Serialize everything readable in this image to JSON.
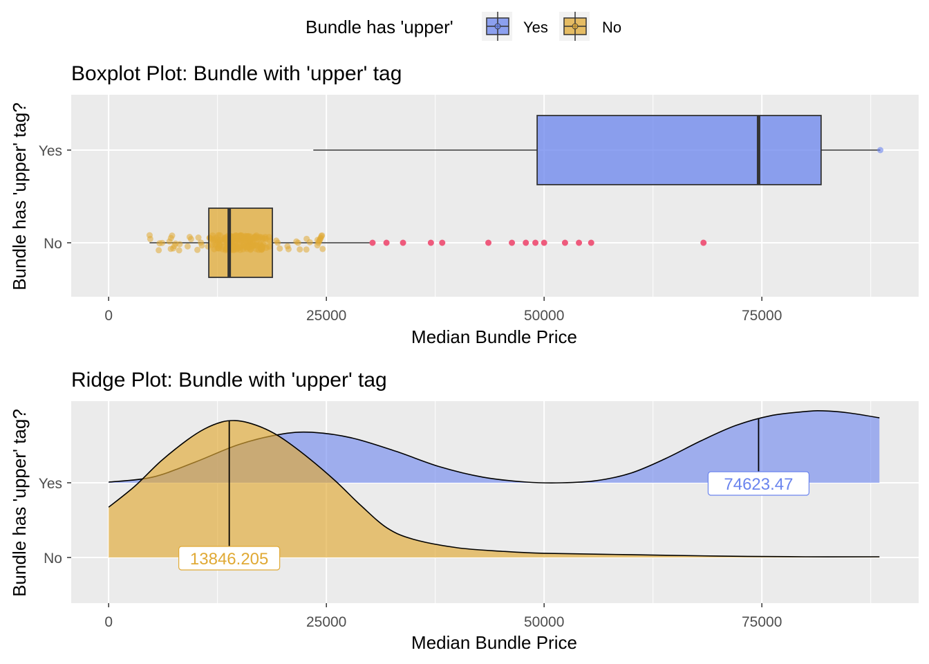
{
  "legend": {
    "title": "Bundle has 'upper'",
    "items": [
      {
        "label": "Yes",
        "color": "#6a84ee"
      },
      {
        "label": "No",
        "color": "#e0a934"
      }
    ]
  },
  "colors": {
    "panel_bg": "#ebebeb",
    "grid": "#ffffff",
    "yes_fill": "#6a84ee",
    "no_fill": "#e0a934",
    "outlier": "#ee5a7c",
    "axis_text": "#4d4d4d"
  },
  "chart_data": [
    {
      "type": "boxplot",
      "title": "Boxplot Plot: Bundle with 'upper' tag",
      "xlabel": "Median Bundle Price",
      "ylabel": "Bundle has 'upper' tag?",
      "xlim": [
        -4300,
        93000
      ],
      "x_ticks": [
        0,
        25000,
        50000,
        75000
      ],
      "categories": [
        "Yes",
        "No"
      ],
      "series": [
        {
          "name": "Yes",
          "whisker_low": 23500,
          "q1": 49200,
          "median": 74623.47,
          "q3": 81800,
          "whisker_high": 88600,
          "outliers": [],
          "points": [
            88600
          ]
        },
        {
          "name": "No",
          "whisker_low": 4700,
          "q1": 11500,
          "median": 13846.205,
          "q3": 18800,
          "whisker_high": 30000,
          "outliers": [
            30300,
            31900,
            33800,
            37000,
            38300,
            43600,
            46300,
            47900,
            49000,
            50000,
            52400,
            54000,
            55400,
            68300
          ]
        }
      ]
    },
    {
      "type": "ridge",
      "title": "Ridge Plot: Bundle with 'upper' tag",
      "xlabel": "Median Bundle Price",
      "ylabel": "Bundle has 'upper' tag?",
      "xlim": [
        -4300,
        93000
      ],
      "x_ticks": [
        0,
        25000,
        50000,
        75000
      ],
      "categories": [
        "Yes",
        "No"
      ],
      "series": [
        {
          "name": "Yes",
          "median_label": "74623.47",
          "median": 74623.47,
          "x": [
            0,
            5000,
            10000,
            15000,
            20000,
            23700,
            28000,
            33000,
            38000,
            43000,
            48000,
            52000,
            56000,
            60000,
            64000,
            68000,
            72000,
            76000,
            80000,
            82000,
            85000,
            88500
          ],
          "density": [
            0.01,
            0.08,
            0.3,
            0.55,
            0.7,
            0.72,
            0.64,
            0.45,
            0.23,
            0.08,
            0.01,
            0.0,
            0.03,
            0.14,
            0.35,
            0.6,
            0.82,
            0.96,
            1.02,
            1.03,
            1.0,
            0.93
          ]
        },
        {
          "name": "No",
          "median_label": "13846.205",
          "median": 13846.205,
          "x": [
            0,
            3000,
            6000,
            9000,
            11000,
            13000,
            14500,
            16000,
            18000,
            20000,
            23000,
            26000,
            29000,
            32000,
            35000,
            40000,
            45000,
            50000,
            60000,
            70000,
            80000,
            88500
          ],
          "density": [
            0.72,
            1.02,
            1.38,
            1.68,
            1.84,
            1.94,
            1.96,
            1.93,
            1.84,
            1.7,
            1.42,
            1.1,
            0.74,
            0.42,
            0.26,
            0.14,
            0.09,
            0.06,
            0.04,
            0.02,
            0.01,
            0.01
          ]
        }
      ]
    }
  ]
}
